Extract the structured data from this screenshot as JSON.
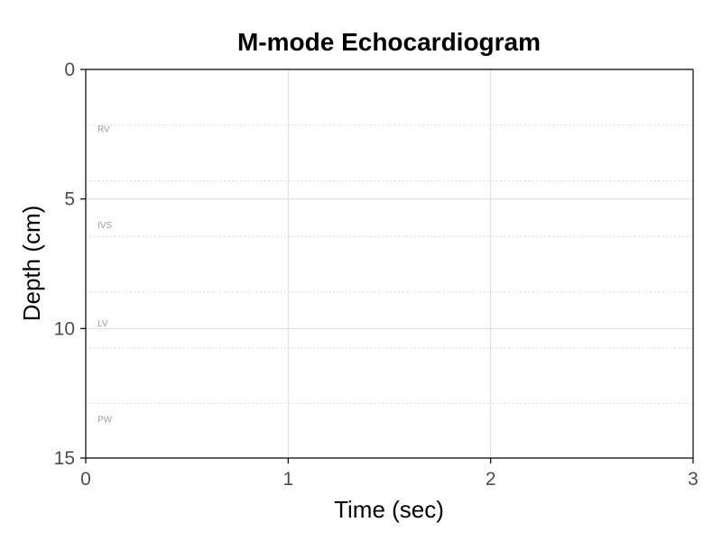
{
  "chart_data": {
    "type": "line",
    "title": "M-mode Echocardiogram",
    "xlabel": "Time (sec)",
    "ylabel": "Depth (cm)",
    "xlim": [
      0,
      3
    ],
    "ylim": [
      0,
      15
    ],
    "y_reversed": true,
    "x_ticks": [
      0,
      1,
      2,
      3
    ],
    "y_ticks": [
      0,
      5,
      10,
      15
    ],
    "grid": true,
    "series": [],
    "regions": [
      {
        "label": "RV",
        "label_depth": 2.3,
        "boundaries": [
          2.15,
          4.3
        ]
      },
      {
        "label": "IVS",
        "label_depth": 6.0,
        "boundaries": [
          6.45,
          8.6
        ]
      },
      {
        "label": "LV",
        "label_depth": 9.8,
        "boundaries": [
          10.75,
          12.9
        ]
      },
      {
        "label": "PW",
        "label_depth": 13.5,
        "boundaries": []
      }
    ],
    "colors": {
      "grid": "#dcdcdc",
      "boundary": "#d0d0d0",
      "region_label": "#999999",
      "tick_label": "#4d4d4d"
    }
  }
}
